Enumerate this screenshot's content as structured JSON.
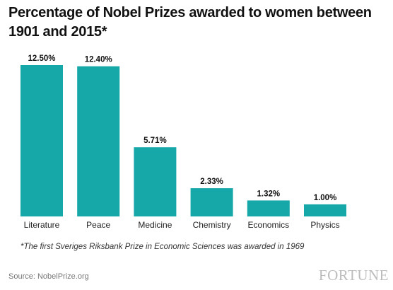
{
  "chart_data": {
    "type": "bar",
    "title": "Percentage of Nobel Prizes awarded to women between 1901 and 2015*",
    "categories": [
      "Literature",
      "Peace",
      "Medicine",
      "Chemistry",
      "Economics",
      "Physics"
    ],
    "values": [
      12.5,
      12.4,
      5.71,
      2.33,
      1.32,
      1.0
    ],
    "value_labels": [
      "12.50%",
      "12.40%",
      "5.71%",
      "2.33%",
      "1.32%",
      "1.00%"
    ],
    "xlabel": "",
    "ylabel": "",
    "ylim": [
      0,
      12.5
    ],
    "grid": false,
    "legend": "none",
    "bar_color": "#16a8a8"
  },
  "footnote": "*The first Sveriges Riksbank Prize in Economic Sciences was awarded in 1969",
  "source": "Source: NobelPrize.org",
  "brand": "FORTUNE"
}
